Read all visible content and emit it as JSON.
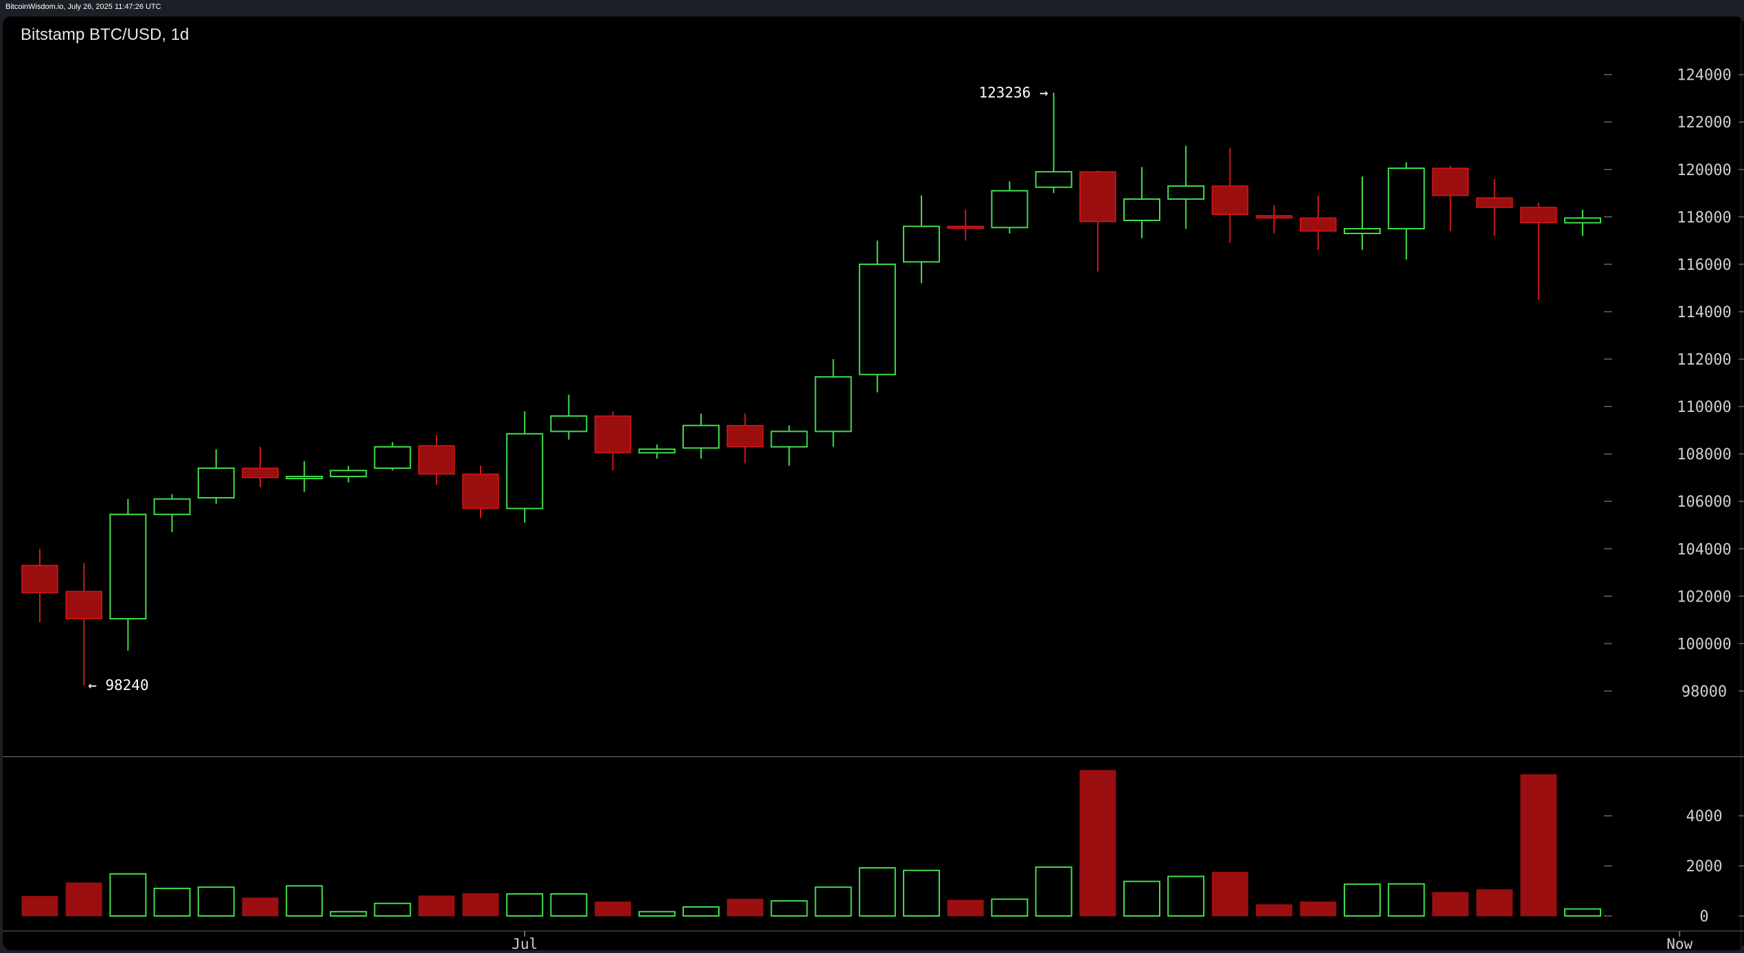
{
  "header": {
    "text": "BitcoinWisdom.io, July 26, 2025 11:47:26 UTC"
  },
  "chart_data": {
    "type": "candlestick",
    "title": "Bitstamp BTC/USD, 1d",
    "colors": {
      "up": "#3ee04a",
      "down": "#d61818",
      "down_fill": "#9b0f10",
      "axis_text": "#d0d0d0",
      "background": "#000000"
    },
    "price_axis": {
      "min": 97000,
      "max": 124800,
      "ticks": [
        124000,
        122000,
        120000,
        118000,
        116000,
        114000,
        112000,
        110000,
        108000,
        106000,
        104000,
        102000,
        100000,
        98000
      ]
    },
    "volume_axis": {
      "min": 0,
      "max": 5900,
      "ticks": [
        4000,
        2000,
        0
      ]
    },
    "x_labels": [
      {
        "label": "Jul",
        "index": 11
      },
      {
        "label": "Now",
        "index": 37.2
      }
    ],
    "annotations": {
      "high": {
        "text": "123236 →",
        "value": 123236,
        "index": 23
      },
      "low": {
        "text": "← 98240",
        "value": 98240,
        "index": 1
      }
    },
    "candles": [
      {
        "o": 103300,
        "h": 104000,
        "l": 100900,
        "c": 102150,
        "v": 780
      },
      {
        "o": 102200,
        "h": 103400,
        "l": 98240,
        "c": 101050,
        "v": 1320
      },
      {
        "o": 101050,
        "h": 106100,
        "l": 99700,
        "c": 105450,
        "v": 1680
      },
      {
        "o": 105450,
        "h": 106300,
        "l": 104700,
        "c": 106100,
        "v": 1100
      },
      {
        "o": 106150,
        "h": 108200,
        "l": 105900,
        "c": 107400,
        "v": 1150
      },
      {
        "o": 107400,
        "h": 108300,
        "l": 106600,
        "c": 107000,
        "v": 720
      },
      {
        "o": 107000,
        "h": 107700,
        "l": 106400,
        "c": 107050,
        "v": 1200
      },
      {
        "o": 107050,
        "h": 107500,
        "l": 106800,
        "c": 107300,
        "v": 170
      },
      {
        "o": 107400,
        "h": 108500,
        "l": 107300,
        "c": 108300,
        "v": 500
      },
      {
        "o": 108350,
        "h": 108800,
        "l": 106700,
        "c": 107150,
        "v": 800
      },
      {
        "o": 107150,
        "h": 107500,
        "l": 105300,
        "c": 105700,
        "v": 900
      },
      {
        "o": 105700,
        "h": 109800,
        "l": 105100,
        "c": 108850,
        "v": 880
      },
      {
        "o": 108950,
        "h": 110500,
        "l": 108600,
        "c": 109600,
        "v": 880
      },
      {
        "o": 109600,
        "h": 109800,
        "l": 107300,
        "c": 108050,
        "v": 560
      },
      {
        "o": 108050,
        "h": 108400,
        "l": 107800,
        "c": 108200,
        "v": 170
      },
      {
        "o": 108250,
        "h": 109700,
        "l": 107800,
        "c": 109200,
        "v": 360
      },
      {
        "o": 109200,
        "h": 109700,
        "l": 107600,
        "c": 108300,
        "v": 670
      },
      {
        "o": 108300,
        "h": 109200,
        "l": 107500,
        "c": 108950,
        "v": 600
      },
      {
        "o": 108950,
        "h": 112000,
        "l": 108300,
        "c": 111250,
        "v": 1150
      },
      {
        "o": 111350,
        "h": 117000,
        "l": 110600,
        "c": 116000,
        "v": 1920
      },
      {
        "o": 116100,
        "h": 118900,
        "l": 115200,
        "c": 117600,
        "v": 1820
      },
      {
        "o": 117600,
        "h": 118300,
        "l": 117000,
        "c": 117550,
        "v": 630
      },
      {
        "o": 117550,
        "h": 119500,
        "l": 117300,
        "c": 119100,
        "v": 670
      },
      {
        "o": 119250,
        "h": 123236,
        "l": 119000,
        "c": 119900,
        "v": 1950
      },
      {
        "o": 119900,
        "h": 119950,
        "l": 115700,
        "c": 117800,
        "v": 5820
      },
      {
        "o": 117850,
        "h": 120100,
        "l": 117100,
        "c": 118750,
        "v": 1380
      },
      {
        "o": 118750,
        "h": 121000,
        "l": 117500,
        "c": 119300,
        "v": 1580
      },
      {
        "o": 119300,
        "h": 120900,
        "l": 116900,
        "c": 118100,
        "v": 1750
      },
      {
        "o": 118050,
        "h": 118500,
        "l": 117300,
        "c": 117950,
        "v": 450
      },
      {
        "o": 117950,
        "h": 118900,
        "l": 116600,
        "c": 117400,
        "v": 560
      },
      {
        "o": 117300,
        "h": 119700,
        "l": 116600,
        "c": 117500,
        "v": 1270
      },
      {
        "o": 117500,
        "h": 120300,
        "l": 116200,
        "c": 120050,
        "v": 1280
      },
      {
        "o": 120050,
        "h": 120150,
        "l": 117400,
        "c": 118900,
        "v": 940
      },
      {
        "o": 118800,
        "h": 119600,
        "l": 117200,
        "c": 118400,
        "v": 1050
      },
      {
        "o": 118400,
        "h": 118600,
        "l": 114500,
        "c": 117750,
        "v": 5650
      },
      {
        "o": 117750,
        "h": 118300,
        "l": 117200,
        "c": 117950,
        "v": 280
      }
    ]
  }
}
